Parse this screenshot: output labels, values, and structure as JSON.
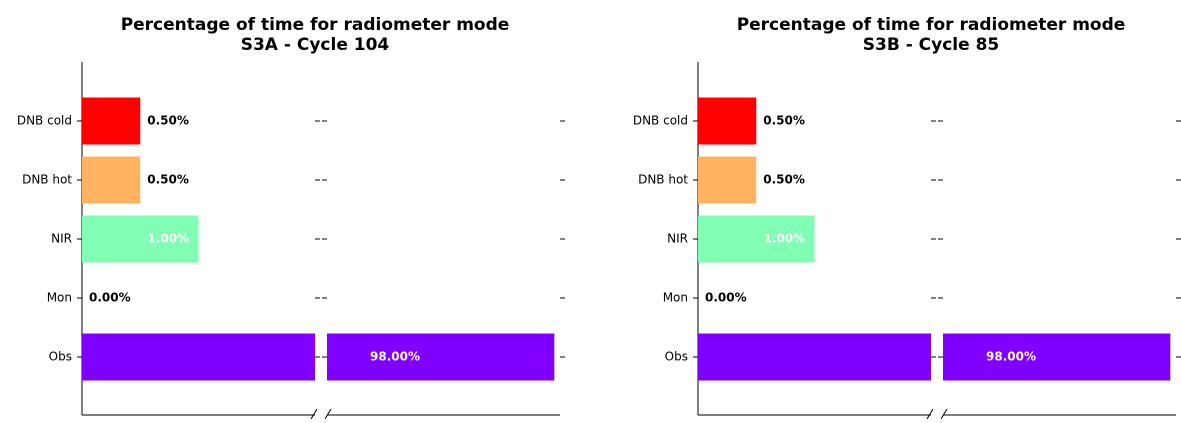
{
  "chart_data": [
    {
      "type": "broken-barh",
      "title": "Percentage of time for radiometer mode",
      "subtitle": "S3A - Cycle 104",
      "categories": [
        "DNB cold",
        "DNB hot",
        "NIR",
        "Mon",
        "Obs"
      ],
      "values": [
        0.5,
        0.5,
        1.0,
        0.0,
        98.0
      ],
      "value_labels": [
        "0.50%",
        "0.50%",
        "1.00%",
        "0.00%",
        "98.00%"
      ],
      "colors": [
        "#ff0000",
        "#ffb360",
        "#80ffb4",
        "#1996f3",
        "#8000ff"
      ],
      "xlim": [
        0,
        2
      ],
      "x2lim": [
        96,
        98.05
      ]
    },
    {
      "type": "broken-barh",
      "title": "Percentage of time for radiometer mode",
      "subtitle": "S3B - Cycle 85",
      "categories": [
        "DNB cold",
        "DNB hot",
        "NIR",
        "Mon",
        "Obs"
      ],
      "values": [
        0.5,
        0.5,
        1.0,
        0.0,
        98.0
      ],
      "value_labels": [
        "0.50%",
        "0.50%",
        "1.00%",
        "0.00%",
        "98.00%"
      ],
      "colors": [
        "#ff0000",
        "#ffb360",
        "#80ffb4",
        "#1996f3",
        "#8000ff"
      ],
      "xlim": [
        0,
        2
      ],
      "x2lim": [
        96,
        98.05
      ]
    }
  ]
}
